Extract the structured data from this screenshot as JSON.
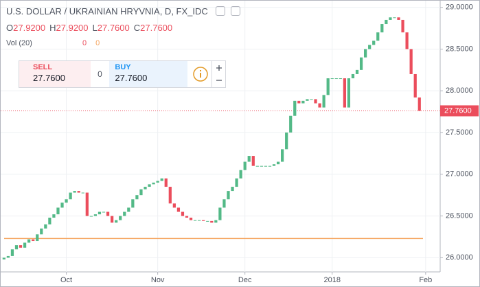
{
  "header": {
    "title": "U.S. DOLLAR / UKRAINIAN HRYVNIA, D, FX_IDC",
    "ohlc": [
      {
        "key": "O",
        "value": "27.9200"
      },
      {
        "key": "H",
        "value": "27.9200"
      },
      {
        "key": "L",
        "value": "27.7600"
      },
      {
        "key": "C",
        "value": "27.7600"
      }
    ],
    "volume": {
      "label": "Vol (20)",
      "values": [
        "0",
        "0"
      ]
    }
  },
  "trade_panel": {
    "sell_label": "SELL",
    "sell_price": "27.7600",
    "spread": "0",
    "buy_label": "BUY",
    "buy_price": "27.7600"
  },
  "chart_data": {
    "type": "candlestick",
    "open": [
      25.98,
      26.0,
      26.02,
      26.1,
      26.15,
      26.12,
      26.18,
      26.22,
      26.2,
      26.28,
      26.35,
      26.4,
      26.48,
      26.52,
      26.6,
      26.66,
      26.7,
      26.78,
      26.8,
      26.78,
      26.78,
      26.5,
      26.5,
      26.52,
      26.55,
      26.55,
      26.5,
      26.42,
      26.45,
      26.5,
      26.55,
      26.6,
      26.7,
      26.75,
      26.82,
      26.85,
      26.88,
      26.9,
      26.92,
      26.95,
      26.85,
      26.65,
      26.6,
      26.55,
      26.5,
      26.48,
      26.45,
      26.45,
      26.45,
      26.44,
      26.44,
      26.42,
      26.45,
      26.6,
      26.7,
      26.8,
      26.85,
      26.95,
      27.05,
      27.15,
      27.22,
      27.1,
      27.1,
      27.1,
      27.1,
      27.1,
      27.12,
      27.15,
      27.3,
      27.5,
      27.7,
      27.88,
      27.85,
      27.88,
      27.9,
      27.9,
      27.85,
      27.8,
      27.95,
      28.15,
      28.15,
      28.15,
      28.15,
      27.8,
      28.15,
      28.2,
      28.25,
      28.4,
      28.5,
      28.55,
      28.6,
      28.7,
      28.8,
      28.85,
      28.88,
      28.88,
      28.85,
      28.7,
      28.5,
      28.2,
      27.92
    ],
    "close": [
      26.0,
      26.02,
      26.1,
      26.15,
      26.12,
      26.18,
      26.22,
      26.2,
      26.28,
      26.35,
      26.4,
      26.48,
      26.52,
      26.6,
      26.66,
      26.7,
      26.78,
      26.8,
      26.78,
      26.78,
      26.5,
      26.5,
      26.52,
      26.55,
      26.55,
      26.5,
      26.42,
      26.45,
      26.5,
      26.55,
      26.6,
      26.7,
      26.75,
      26.82,
      26.85,
      26.88,
      26.9,
      26.92,
      26.95,
      26.85,
      26.65,
      26.6,
      26.55,
      26.5,
      26.48,
      26.45,
      26.45,
      26.45,
      26.44,
      26.44,
      26.42,
      26.45,
      26.6,
      26.7,
      26.8,
      26.85,
      26.95,
      27.05,
      27.15,
      27.22,
      27.1,
      27.1,
      27.1,
      27.1,
      27.1,
      27.12,
      27.15,
      27.3,
      27.5,
      27.7,
      27.88,
      27.85,
      27.88,
      27.9,
      27.9,
      27.85,
      27.8,
      27.95,
      28.15,
      28.15,
      28.15,
      28.15,
      27.8,
      28.15,
      28.2,
      28.25,
      28.4,
      28.5,
      28.55,
      28.6,
      28.7,
      28.8,
      28.85,
      28.88,
      28.88,
      28.85,
      28.7,
      28.5,
      28.2,
      27.92,
      27.76
    ],
    "up_color": "#53b987",
    "down_color": "#eb4d5c",
    "xlim": [
      -0.8,
      105
    ],
    "xticks": [
      {
        "value": 15,
        "label": "Oct"
      },
      {
        "value": 37,
        "label": "Nov"
      },
      {
        "value": 58,
        "label": "Dec"
      },
      {
        "value": 79,
        "label": "2018"
      },
      {
        "value": 101.5,
        "label": "Feb"
      }
    ],
    "ylim": [
      25.83,
      29.08
    ],
    "yticks": [
      {
        "value": 26,
        "label": "26.0000"
      },
      {
        "value": 26.5,
        "label": "26.5000"
      },
      {
        "value": 27,
        "label": "27.0000"
      },
      {
        "value": 27.5,
        "label": "27.5000"
      },
      {
        "value": 28,
        "label": "28.0000"
      },
      {
        "value": 28.5,
        "label": "28.5000"
      },
      {
        "value": 29,
        "label": "29.0000"
      }
    ],
    "grid": true,
    "last_price": {
      "value": 27.76,
      "label": "27.7600",
      "color": "#eb4d5c"
    },
    "horizontal_line": {
      "value": 26.23,
      "color": "#f5a35c"
    }
  }
}
